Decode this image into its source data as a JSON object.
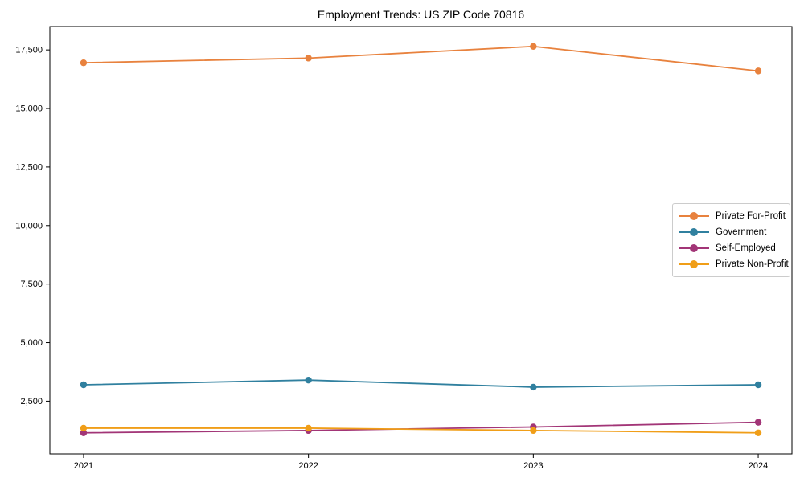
{
  "chart_data": {
    "type": "line",
    "title": "Employment Trends: US ZIP Code 70816",
    "xlabel": "",
    "ylabel": "",
    "x": [
      2021,
      2022,
      2023,
      2024
    ],
    "x_tick_labels": [
      "2021",
      "2022",
      "2023",
      "2024"
    ],
    "xlim": [
      2020.85,
      2024.15
    ],
    "ylim": [
      250,
      18500
    ],
    "grid": false,
    "legend_position": "center-right",
    "axis_color": "#000000",
    "yticks": [
      {
        "value": 2500,
        "label": "2,500"
      },
      {
        "value": 5000,
        "label": "5,000"
      },
      {
        "value": 7500,
        "label": "7,500"
      },
      {
        "value": 10000,
        "label": "10,000"
      },
      {
        "value": 12500,
        "label": "12,500"
      },
      {
        "value": 15000,
        "label": "15,000"
      },
      {
        "value": 17500,
        "label": "17,500"
      }
    ],
    "series": [
      {
        "name": "Private For-Profit",
        "color": "#E8823E",
        "values": [
          16950,
          17150,
          17650,
          16600
        ]
      },
      {
        "name": "Government",
        "color": "#30809F",
        "values": [
          3200,
          3400,
          3100,
          3200
        ]
      },
      {
        "name": "Self-Employed",
        "color": "#A23577",
        "values": [
          1150,
          1250,
          1400,
          1600
        ]
      },
      {
        "name": "Private Non-Profit",
        "color": "#F09E18",
        "values": [
          1350,
          1350,
          1250,
          1150
        ]
      }
    ]
  }
}
